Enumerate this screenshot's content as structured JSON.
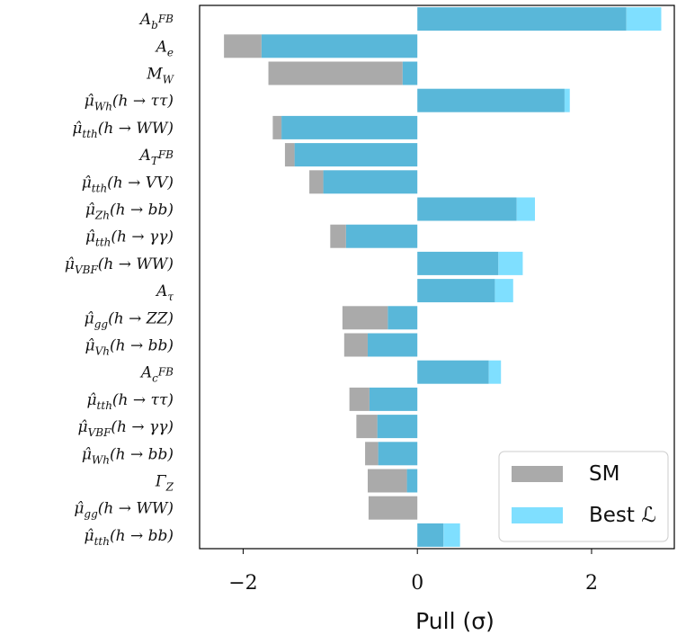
{
  "chart_data": {
    "type": "bar",
    "orientation": "horizontal",
    "xlabel": "Pull (σ)",
    "xlim": [
      -2.5,
      2.95
    ],
    "xticks": [
      -2,
      0,
      2
    ],
    "xtick_labels": [
      "−2",
      "0",
      "2"
    ],
    "grid": false,
    "legend_placement": "bottom-right",
    "categories": [
      "A_b^{FB}",
      "A_e",
      "M_W",
      "μ̂_{Wh}(h → ττ)",
      "μ̂_{tth}(h → WW)",
      "A_T^{FB}",
      "μ̂_{tth}(h → VV)",
      "μ̂_{Zh}(h → bb)",
      "μ̂_{tth}(h → γγ)",
      "μ̂_{VBF}(h → WW)",
      "A_τ",
      "μ̂_{gg}(h → ZZ)",
      "μ̂_{Vh}(h → bb)",
      "A_c^{FB}",
      "μ̂_{tth}(h → ττ)",
      "μ̂_{VBF}(h → γγ)",
      "μ̂_{Wh}(h → bb)",
      "Γ_Z",
      "μ̂_{gg}(h → WW)",
      "μ̂_{tth}(h → bb)"
    ],
    "series": [
      {
        "name": "SM",
        "color": "#aaaaaa",
        "values": [
          2.4,
          -2.22,
          -1.71,
          1.69,
          -1.66,
          -1.52,
          -1.24,
          1.14,
          -1.0,
          0.93,
          0.89,
          -0.86,
          -0.84,
          0.82,
          -0.78,
          -0.7,
          -0.6,
          -0.57,
          -0.56,
          0.3
        ]
      },
      {
        "name": "Best ℒ",
        "color": "#7fdfff",
        "values": [
          2.8,
          -1.79,
          -0.17,
          1.75,
          -1.56,
          -1.41,
          -1.08,
          1.35,
          -0.82,
          1.21,
          1.1,
          -0.34,
          -0.57,
          0.96,
          -0.55,
          -0.46,
          -0.45,
          -0.12,
          0.0,
          0.49
        ]
      }
    ],
    "colors": {
      "sm": "#aaaaaa",
      "best": "#7fdfff",
      "overlap": "#59b7d9"
    }
  }
}
